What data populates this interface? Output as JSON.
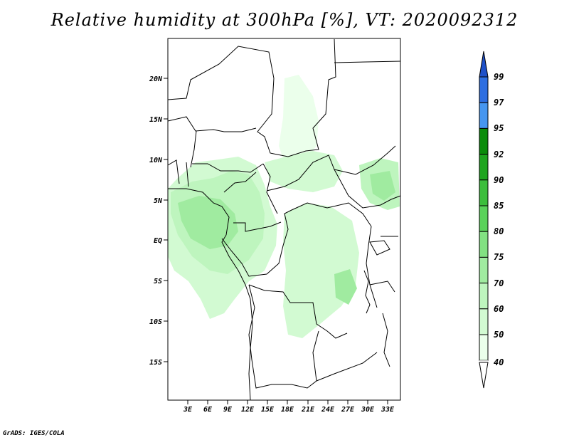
{
  "title": "Relative humidity at 300hPa [%], VT: 2020092312",
  "credit": "GrADS: IGES/COLA",
  "map": {
    "lat_labels": [
      "20N",
      "15N",
      "10N",
      "5N",
      "EQ",
      "5S",
      "10S",
      "15S"
    ],
    "lon_labels": [
      "3E",
      "6E",
      "9E",
      "12E",
      "15E",
      "18E",
      "21E",
      "24E",
      "27E",
      "30E",
      "33E"
    ]
  },
  "colorbar": {
    "levels": [
      "99",
      "97",
      "95",
      "92",
      "90",
      "85",
      "80",
      "75",
      "70",
      "60",
      "50",
      "40"
    ],
    "colors": [
      "#1e50c8",
      "#2d6ee1",
      "#4696f0",
      "#0a8c0a",
      "#1ea51e",
      "#3cbe3c",
      "#5ad25a",
      "#82e182",
      "#a0eba0",
      "#bef5be",
      "#d2fad2",
      "#ebffeb",
      "#ffffff",
      "#1e3c96"
    ]
  }
}
